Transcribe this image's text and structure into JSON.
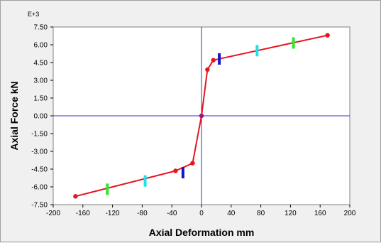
{
  "chart_data": {
    "type": "line",
    "xlabel": "Axial Deformation mm",
    "ylabel": "Axial Force kN",
    "y_multiplier_label": "E+3",
    "xlim": [
      -200,
      200
    ],
    "ylim": [
      -7.5,
      7.5
    ],
    "x_ticks": [
      -200,
      -160,
      -120,
      -80,
      -40,
      0,
      40,
      80,
      120,
      160,
      200
    ],
    "x_tick_labels": [
      "-200",
      "-160",
      "-120",
      "-80",
      "-40",
      "0",
      "40",
      "80",
      "120",
      "160",
      "200"
    ],
    "y_ticks": [
      7.5,
      6.0,
      4.5,
      3.0,
      1.5,
      0,
      -1.5,
      -3.0,
      -4.5,
      -6.0,
      -7.5
    ],
    "y_tick_labels": [
      "7.50",
      "6.00",
      "4.50",
      "3.00",
      "1.50",
      "0.00",
      "-1.50",
      "-3.00",
      "-4.50",
      "-6.00",
      "-7.50"
    ],
    "grid": false,
    "zero_lines": true,
    "series": [
      {
        "color": "#e8141e",
        "points": [
          {
            "x": -170,
            "y": -6.8
          },
          {
            "x": -35,
            "y": -4.65
          },
          {
            "x": -12,
            "y": -4.0
          },
          {
            "x": 0,
            "y": 0
          },
          {
            "x": 8,
            "y": 3.9
          },
          {
            "x": 16,
            "y": 4.7
          },
          {
            "x": 170,
            "y": 6.8
          }
        ]
      }
    ],
    "hinge_markers": [
      {
        "x": -127,
        "y": -6.2,
        "color": "#2ee82e"
      },
      {
        "x": -76,
        "y": -5.5,
        "color": "#22e0e8"
      },
      {
        "x": -25,
        "y": -4.8,
        "color": "#1414c8"
      },
      {
        "x": 24,
        "y": 4.8,
        "color": "#1414c8"
      },
      {
        "x": 75,
        "y": 5.5,
        "color": "#22e0e8"
      },
      {
        "x": 124,
        "y": 6.15,
        "color": "#2ee82e"
      }
    ],
    "colors": {
      "line": "#e8141e",
      "axis": "#3030c8",
      "plot_background": "#ffffff",
      "page_background": "#f0f0f0"
    }
  }
}
